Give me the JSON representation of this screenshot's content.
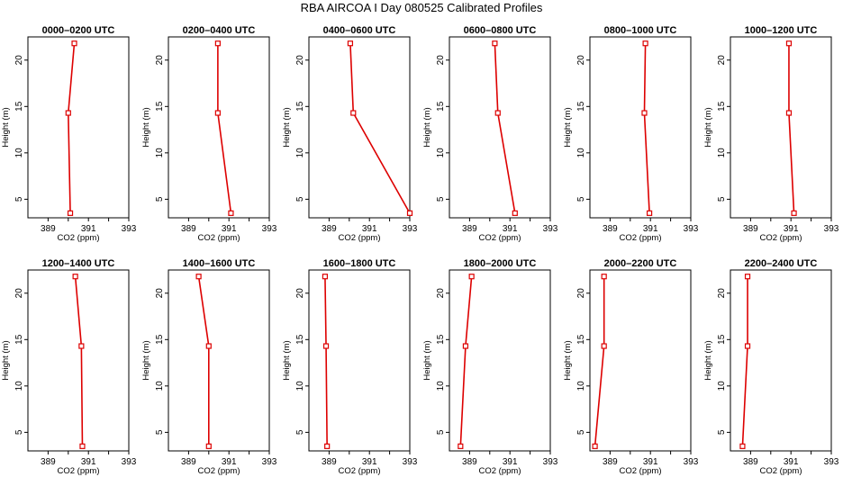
{
  "figure": {
    "title": "RBA AIRCOA I  Day 080525  Calibrated Profiles"
  },
  "chart_data": [
    {
      "type": "line",
      "title": "0000–0200 UTC",
      "xlabel": "CO2 (ppm)",
      "ylabel": "Height (m)",
      "xlim": [
        388,
        393
      ],
      "ylim": [
        3,
        22.5
      ],
      "xticks": [
        389,
        390,
        391,
        392,
        393
      ],
      "xtick_labels": [
        "389",
        "",
        "391",
        "",
        "393"
      ],
      "yticks": [
        5,
        10,
        15,
        20
      ],
      "series": [
        {
          "x": [
            390.1,
            390.0,
            390.3
          ],
          "y": [
            3.5,
            14.3,
            21.8
          ]
        }
      ]
    },
    {
      "type": "line",
      "title": "0200–0400 UTC",
      "xlabel": "CO2 (ppm)",
      "ylabel": "Height (m)",
      "xlim": [
        388,
        393
      ],
      "ylim": [
        3,
        22.5
      ],
      "xticks": [
        389,
        390,
        391,
        392,
        393
      ],
      "xtick_labels": [
        "389",
        "",
        "391",
        "",
        "393"
      ],
      "yticks": [
        5,
        10,
        15,
        20
      ],
      "series": [
        {
          "x": [
            391.1,
            390.45,
            390.45
          ],
          "y": [
            3.5,
            14.3,
            21.8
          ]
        }
      ]
    },
    {
      "type": "line",
      "title": "0400–0600 UTC",
      "xlabel": "CO2 (ppm)",
      "ylabel": "Height (m)",
      "xlim": [
        388,
        393
      ],
      "ylim": [
        3,
        22.5
      ],
      "xticks": [
        389,
        390,
        391,
        392,
        393
      ],
      "xtick_labels": [
        "389",
        "",
        "391",
        "",
        "393"
      ],
      "yticks": [
        5,
        10,
        15,
        20
      ],
      "series": [
        {
          "x": [
            393.0,
            390.2,
            390.05
          ],
          "y": [
            3.5,
            14.3,
            21.8
          ]
        }
      ]
    },
    {
      "type": "line",
      "title": "0600–0800 UTC",
      "xlabel": "CO2 (ppm)",
      "ylabel": "Height (m)",
      "xlim": [
        388,
        393
      ],
      "ylim": [
        3,
        22.5
      ],
      "xticks": [
        389,
        390,
        391,
        392,
        393
      ],
      "xtick_labels": [
        "389",
        "",
        "391",
        "",
        "393"
      ],
      "yticks": [
        5,
        10,
        15,
        20
      ],
      "series": [
        {
          "x": [
            391.25,
            390.4,
            390.25
          ],
          "y": [
            3.5,
            14.3,
            21.8
          ]
        }
      ]
    },
    {
      "type": "line",
      "title": "0800–1000 UTC",
      "xlabel": "CO2 (ppm)",
      "ylabel": "Height (m)",
      "xlim": [
        388,
        393
      ],
      "ylim": [
        3,
        22.5
      ],
      "xticks": [
        389,
        390,
        391,
        392,
        393
      ],
      "xtick_labels": [
        "389",
        "",
        "391",
        "",
        "393"
      ],
      "yticks": [
        5,
        10,
        15,
        20
      ],
      "series": [
        {
          "x": [
            390.95,
            390.7,
            390.75
          ],
          "y": [
            3.5,
            14.3,
            21.8
          ]
        }
      ]
    },
    {
      "type": "line",
      "title": "1000–1200 UTC",
      "xlabel": "CO2 (ppm)",
      "ylabel": "Height (m)",
      "xlim": [
        388,
        393
      ],
      "ylim": [
        3,
        22.5
      ],
      "xticks": [
        389,
        390,
        391,
        392,
        393
      ],
      "xtick_labels": [
        "389",
        "",
        "391",
        "",
        "393"
      ],
      "yticks": [
        5,
        10,
        15,
        20
      ],
      "series": [
        {
          "x": [
            391.15,
            390.9,
            390.9
          ],
          "y": [
            3.5,
            14.3,
            21.8
          ]
        }
      ]
    },
    {
      "type": "line",
      "title": "1200–1400 UTC",
      "xlabel": "CO2 (ppm)",
      "ylabel": "Height (m)",
      "xlim": [
        388,
        393
      ],
      "ylim": [
        3,
        22.5
      ],
      "xticks": [
        389,
        390,
        391,
        392,
        393
      ],
      "xtick_labels": [
        "389",
        "",
        "391",
        "",
        "393"
      ],
      "yticks": [
        5,
        10,
        15,
        20
      ],
      "series": [
        {
          "x": [
            390.7,
            390.65,
            390.35
          ],
          "y": [
            3.5,
            14.3,
            21.8
          ]
        }
      ]
    },
    {
      "type": "line",
      "title": "1400–1600 UTC",
      "xlabel": "CO2 (ppm)",
      "ylabel": "Height (m)",
      "xlim": [
        388,
        393
      ],
      "ylim": [
        3,
        22.5
      ],
      "xticks": [
        389,
        390,
        391,
        392,
        393
      ],
      "xtick_labels": [
        "389",
        "",
        "391",
        "",
        "393"
      ],
      "yticks": [
        5,
        10,
        15,
        20
      ],
      "series": [
        {
          "x": [
            390.0,
            390.0,
            389.5
          ],
          "y": [
            3.5,
            14.3,
            21.8
          ]
        }
      ]
    },
    {
      "type": "line",
      "title": "1600–1800 UTC",
      "xlabel": "CO2 (ppm)",
      "ylabel": "Height (m)",
      "xlim": [
        388,
        393
      ],
      "ylim": [
        3,
        22.5
      ],
      "xticks": [
        389,
        390,
        391,
        392,
        393
      ],
      "xtick_labels": [
        "389",
        "",
        "391",
        "",
        "393"
      ],
      "yticks": [
        5,
        10,
        15,
        20
      ],
      "series": [
        {
          "x": [
            388.9,
            388.85,
            388.8
          ],
          "y": [
            3.5,
            14.3,
            21.8
          ]
        }
      ]
    },
    {
      "type": "line",
      "title": "1800–2000 UTC",
      "xlabel": "CO2 (ppm)",
      "ylabel": "Height (m)",
      "xlim": [
        388,
        393
      ],
      "ylim": [
        3,
        22.5
      ],
      "xticks": [
        389,
        390,
        391,
        392,
        393
      ],
      "xtick_labels": [
        "389",
        "",
        "391",
        "",
        "393"
      ],
      "yticks": [
        5,
        10,
        15,
        20
      ],
      "series": [
        {
          "x": [
            388.55,
            388.8,
            389.1
          ],
          "y": [
            3.5,
            14.3,
            21.8
          ]
        }
      ]
    },
    {
      "type": "line",
      "title": "2000–2200 UTC",
      "xlabel": "CO2 (ppm)",
      "ylabel": "Height (m)",
      "xlim": [
        388,
        393
      ],
      "ylim": [
        3,
        22.5
      ],
      "xticks": [
        389,
        390,
        391,
        392,
        393
      ],
      "xtick_labels": [
        "389",
        "",
        "391",
        "",
        "393"
      ],
      "yticks": [
        5,
        10,
        15,
        20
      ],
      "series": [
        {
          "x": [
            388.25,
            388.7,
            388.7
          ],
          "y": [
            3.5,
            14.3,
            21.8
          ]
        }
      ]
    },
    {
      "type": "line",
      "title": "2200–2400 UTC",
      "xlabel": "CO2 (ppm)",
      "ylabel": "Height (m)",
      "xlim": [
        388,
        393
      ],
      "ylim": [
        3,
        22.5
      ],
      "xticks": [
        389,
        390,
        391,
        392,
        393
      ],
      "xtick_labels": [
        "389",
        "",
        "391",
        "",
        "393"
      ],
      "yticks": [
        5,
        10,
        15,
        20
      ],
      "series": [
        {
          "x": [
            388.6,
            388.85,
            388.85
          ],
          "y": [
            3.5,
            14.3,
            21.8
          ]
        }
      ]
    }
  ],
  "colors": {
    "series": "#dd0000",
    "axis": "#000000",
    "background": "#ffffff"
  }
}
